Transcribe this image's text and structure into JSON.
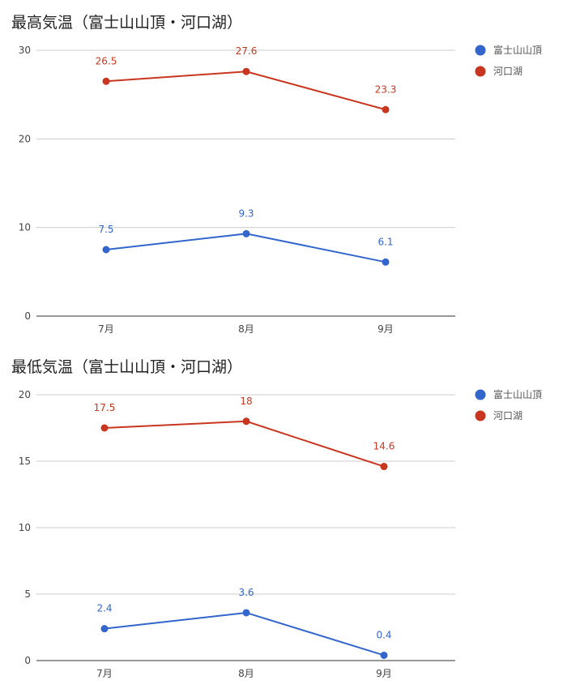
{
  "colors": {
    "fuji": "#3366cc",
    "kawaguchi": "#c9361f",
    "grid": "#cccccc",
    "axis": "#333333"
  },
  "chart_data": [
    {
      "type": "line",
      "title": "最高気温（富士山山頂・河口湖）",
      "categories": [
        "7月",
        "8月",
        "9月"
      ],
      "yticks": [
        0,
        10,
        20,
        30
      ],
      "ylim": [
        0,
        30
      ],
      "grid": true,
      "legend": "right",
      "series": [
        {
          "name": "富士山山頂",
          "values": [
            7.5,
            9.3,
            6.1
          ]
        },
        {
          "name": "河口湖",
          "values": [
            26.5,
            27.6,
            23.3
          ]
        }
      ]
    },
    {
      "type": "line",
      "title": "最低気温（富士山山頂・河口湖）",
      "categories": [
        "7月",
        "8月",
        "9月"
      ],
      "yticks": [
        0,
        5,
        10,
        15,
        20
      ],
      "ylim": [
        0,
        20
      ],
      "grid": true,
      "legend": "right",
      "series": [
        {
          "name": "富士山山頂",
          "values": [
            2.4,
            3.6,
            0.4
          ]
        },
        {
          "name": "河口湖",
          "values": [
            17.5,
            18,
            14.6
          ]
        }
      ]
    }
  ]
}
